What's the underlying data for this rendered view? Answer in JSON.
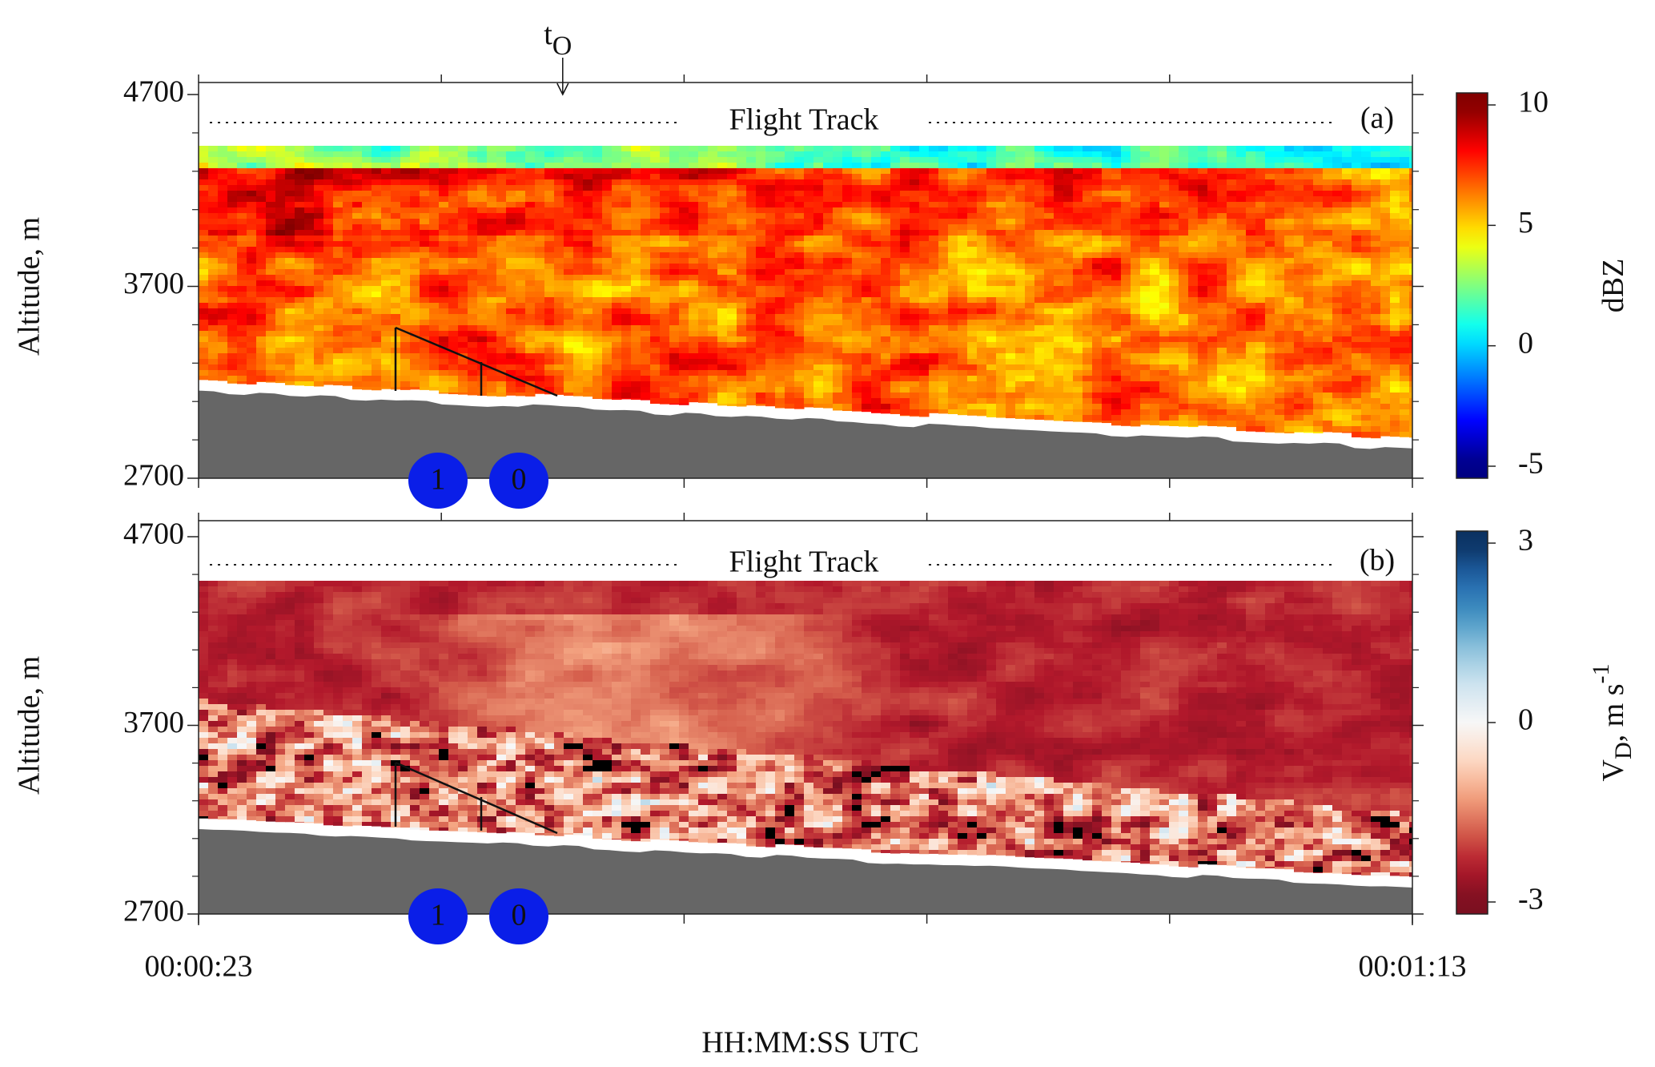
{
  "chart_data": [
    {
      "type": "contour",
      "panel_label": "(a)",
      "annotation": "Flight Track",
      "ylabel": "Altitude, m",
      "ylim": [
        2700,
        4700
      ],
      "yticks": [
        2700,
        3700,
        4700
      ],
      "xlim": [
        23,
        73
      ],
      "time_marker": {
        "label": "t",
        "subscript": "O",
        "x": 38
      },
      "colormap": "jet",
      "clim": [
        -5,
        10
      ],
      "cticks": [
        -5,
        0,
        5,
        10
      ],
      "colorbar_label": [
        {
          "text": "dBZ"
        }
      ],
      "markers": [
        "1",
        "0"
      ]
    },
    {
      "type": "contour",
      "panel_label": "(b)",
      "annotation": "Flight Track",
      "ylabel": "Altitude, m",
      "ylim": [
        2700,
        4700
      ],
      "yticks": [
        2700,
        3700,
        4700
      ],
      "xlim": [
        23,
        73
      ],
      "xticks": [
        {
          "value": 23,
          "label": "00:00:23"
        },
        {
          "value": 73,
          "label": "00:01:13"
        }
      ],
      "xlabel": "HH:MM:SS UTC",
      "colormap": "diverging",
      "clim": [
        -3,
        3
      ],
      "cticks": [
        -3,
        0,
        3
      ],
      "colorbar_label": [
        {
          "text": "V"
        },
        {
          "text": "D",
          "sub": true
        },
        {
          "text": ", m s"
        },
        {
          "text": "-1",
          "sup": true
        }
      ],
      "markers": [
        "1",
        "0"
      ]
    }
  ]
}
